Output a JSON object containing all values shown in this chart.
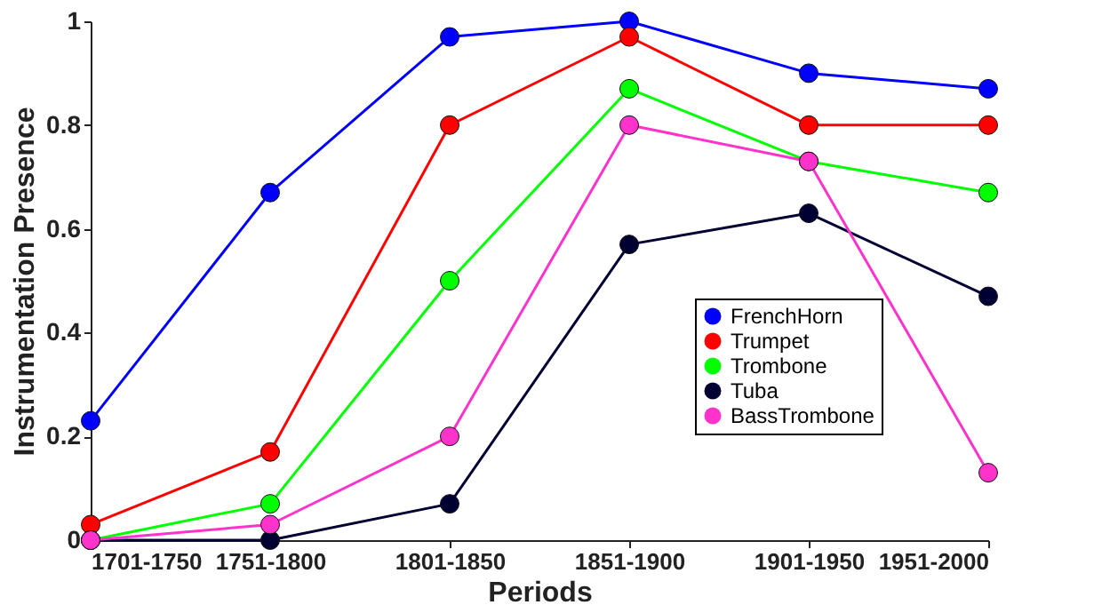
{
  "chart_data": {
    "type": "line",
    "xlabel": "Periods",
    "ylabel": "Instrumentation Presence",
    "categories": [
      "1701-1750",
      "1751-1800",
      "1801-1850",
      "1851-1900",
      "1901-1950",
      "1951-2000"
    ],
    "series": [
      {
        "name": "FrenchHorn",
        "color": "#0000ff",
        "values": [
          0.23,
          0.67,
          0.97,
          1,
          0.9,
          0.87
        ]
      },
      {
        "name": "Trumpet",
        "color": "#ff0000",
        "values": [
          0.03,
          0.17,
          0.8,
          0.97,
          0.8,
          0.8
        ]
      },
      {
        "name": "Trombone",
        "color": "#00ff00",
        "values": [
          0,
          0.07,
          0.5,
          0.87,
          0.73,
          0.67
        ]
      },
      {
        "name": "Tuba",
        "color": "#000033",
        "values": [
          0,
          0,
          0.07,
          0.57,
          0.63,
          0.47
        ]
      },
      {
        "name": "BassTrombone",
        "color": "#ff33cc",
        "values": [
          0,
          0.03,
          0.2,
          0.8,
          0.73,
          0.13
        ]
      }
    ],
    "ylim": [
      0,
      1
    ],
    "yticks": [
      0,
      0.2,
      0.4,
      0.6,
      0.8,
      1
    ],
    "legend": "bottom right",
    "marker": "circle",
    "line_style": "solid"
  }
}
